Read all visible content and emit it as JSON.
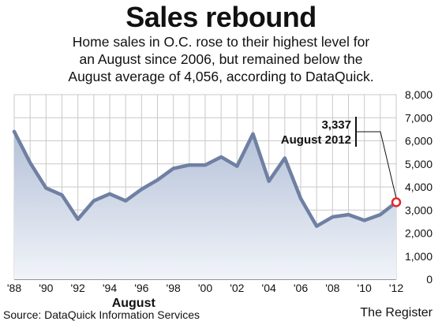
{
  "title": "Sales rebound",
  "subtitle_lines": [
    "Home sales in O.C. rose to their highest level for",
    "an August since 2006, but remained below the",
    "August average of 4,056, according to DataQuick."
  ],
  "source": "Source: DataQuick Information Services",
  "credit": "The Register",
  "colors": {
    "line": "#6f80a3",
    "area_top": "#b4c1d8",
    "area_bottom": "#f1f4f9",
    "grid": "#c9c9c9",
    "highlight": "#e4262c"
  },
  "chart_data": {
    "type": "area",
    "title": "Sales rebound",
    "xlabel": "August",
    "ylabel": "",
    "xlim": [
      1988,
      2012
    ],
    "ylim": [
      0,
      8000
    ],
    "grid": true,
    "x_ticks": [
      1988,
      1990,
      1992,
      1994,
      1996,
      1998,
      2000,
      2002,
      2004,
      2006,
      2008,
      2010,
      2012
    ],
    "x_tick_labels": [
      "'88",
      "'90",
      "'92",
      "'94",
      "'96",
      "'98",
      "'00",
      "'02",
      "'04",
      "'06",
      "'08",
      "'10",
      "'12"
    ],
    "y_ticks": [
      0,
      1000,
      2000,
      3000,
      4000,
      5000,
      6000,
      7000,
      8000
    ],
    "y_tick_labels": [
      "0",
      "1,000",
      "2,000",
      "3,000",
      "4,000",
      "5,000",
      "6,000",
      "7,000",
      "8,000"
    ],
    "series": [
      {
        "x": [
          1988,
          1989,
          1990,
          1991,
          1992,
          1993,
          1994,
          1995,
          1996,
          1997,
          1998,
          1999,
          2000,
          2001,
          2002,
          2003,
          2004,
          2005,
          2006,
          2007,
          2008,
          2009,
          2010,
          2011,
          2012
        ],
        "values": [
          6400,
          5050,
          3950,
          3650,
          2600,
          3400,
          3700,
          3400,
          3900,
          4300,
          4800,
          4950,
          4950,
          5300,
          4900,
          6300,
          4250,
          5250,
          3500,
          2300,
          2700,
          2800,
          2550,
          2800,
          3337
        ]
      }
    ],
    "annotation": {
      "x": 2012,
      "value": 3337,
      "value_label": "3,337",
      "label": "August 2012"
    }
  }
}
